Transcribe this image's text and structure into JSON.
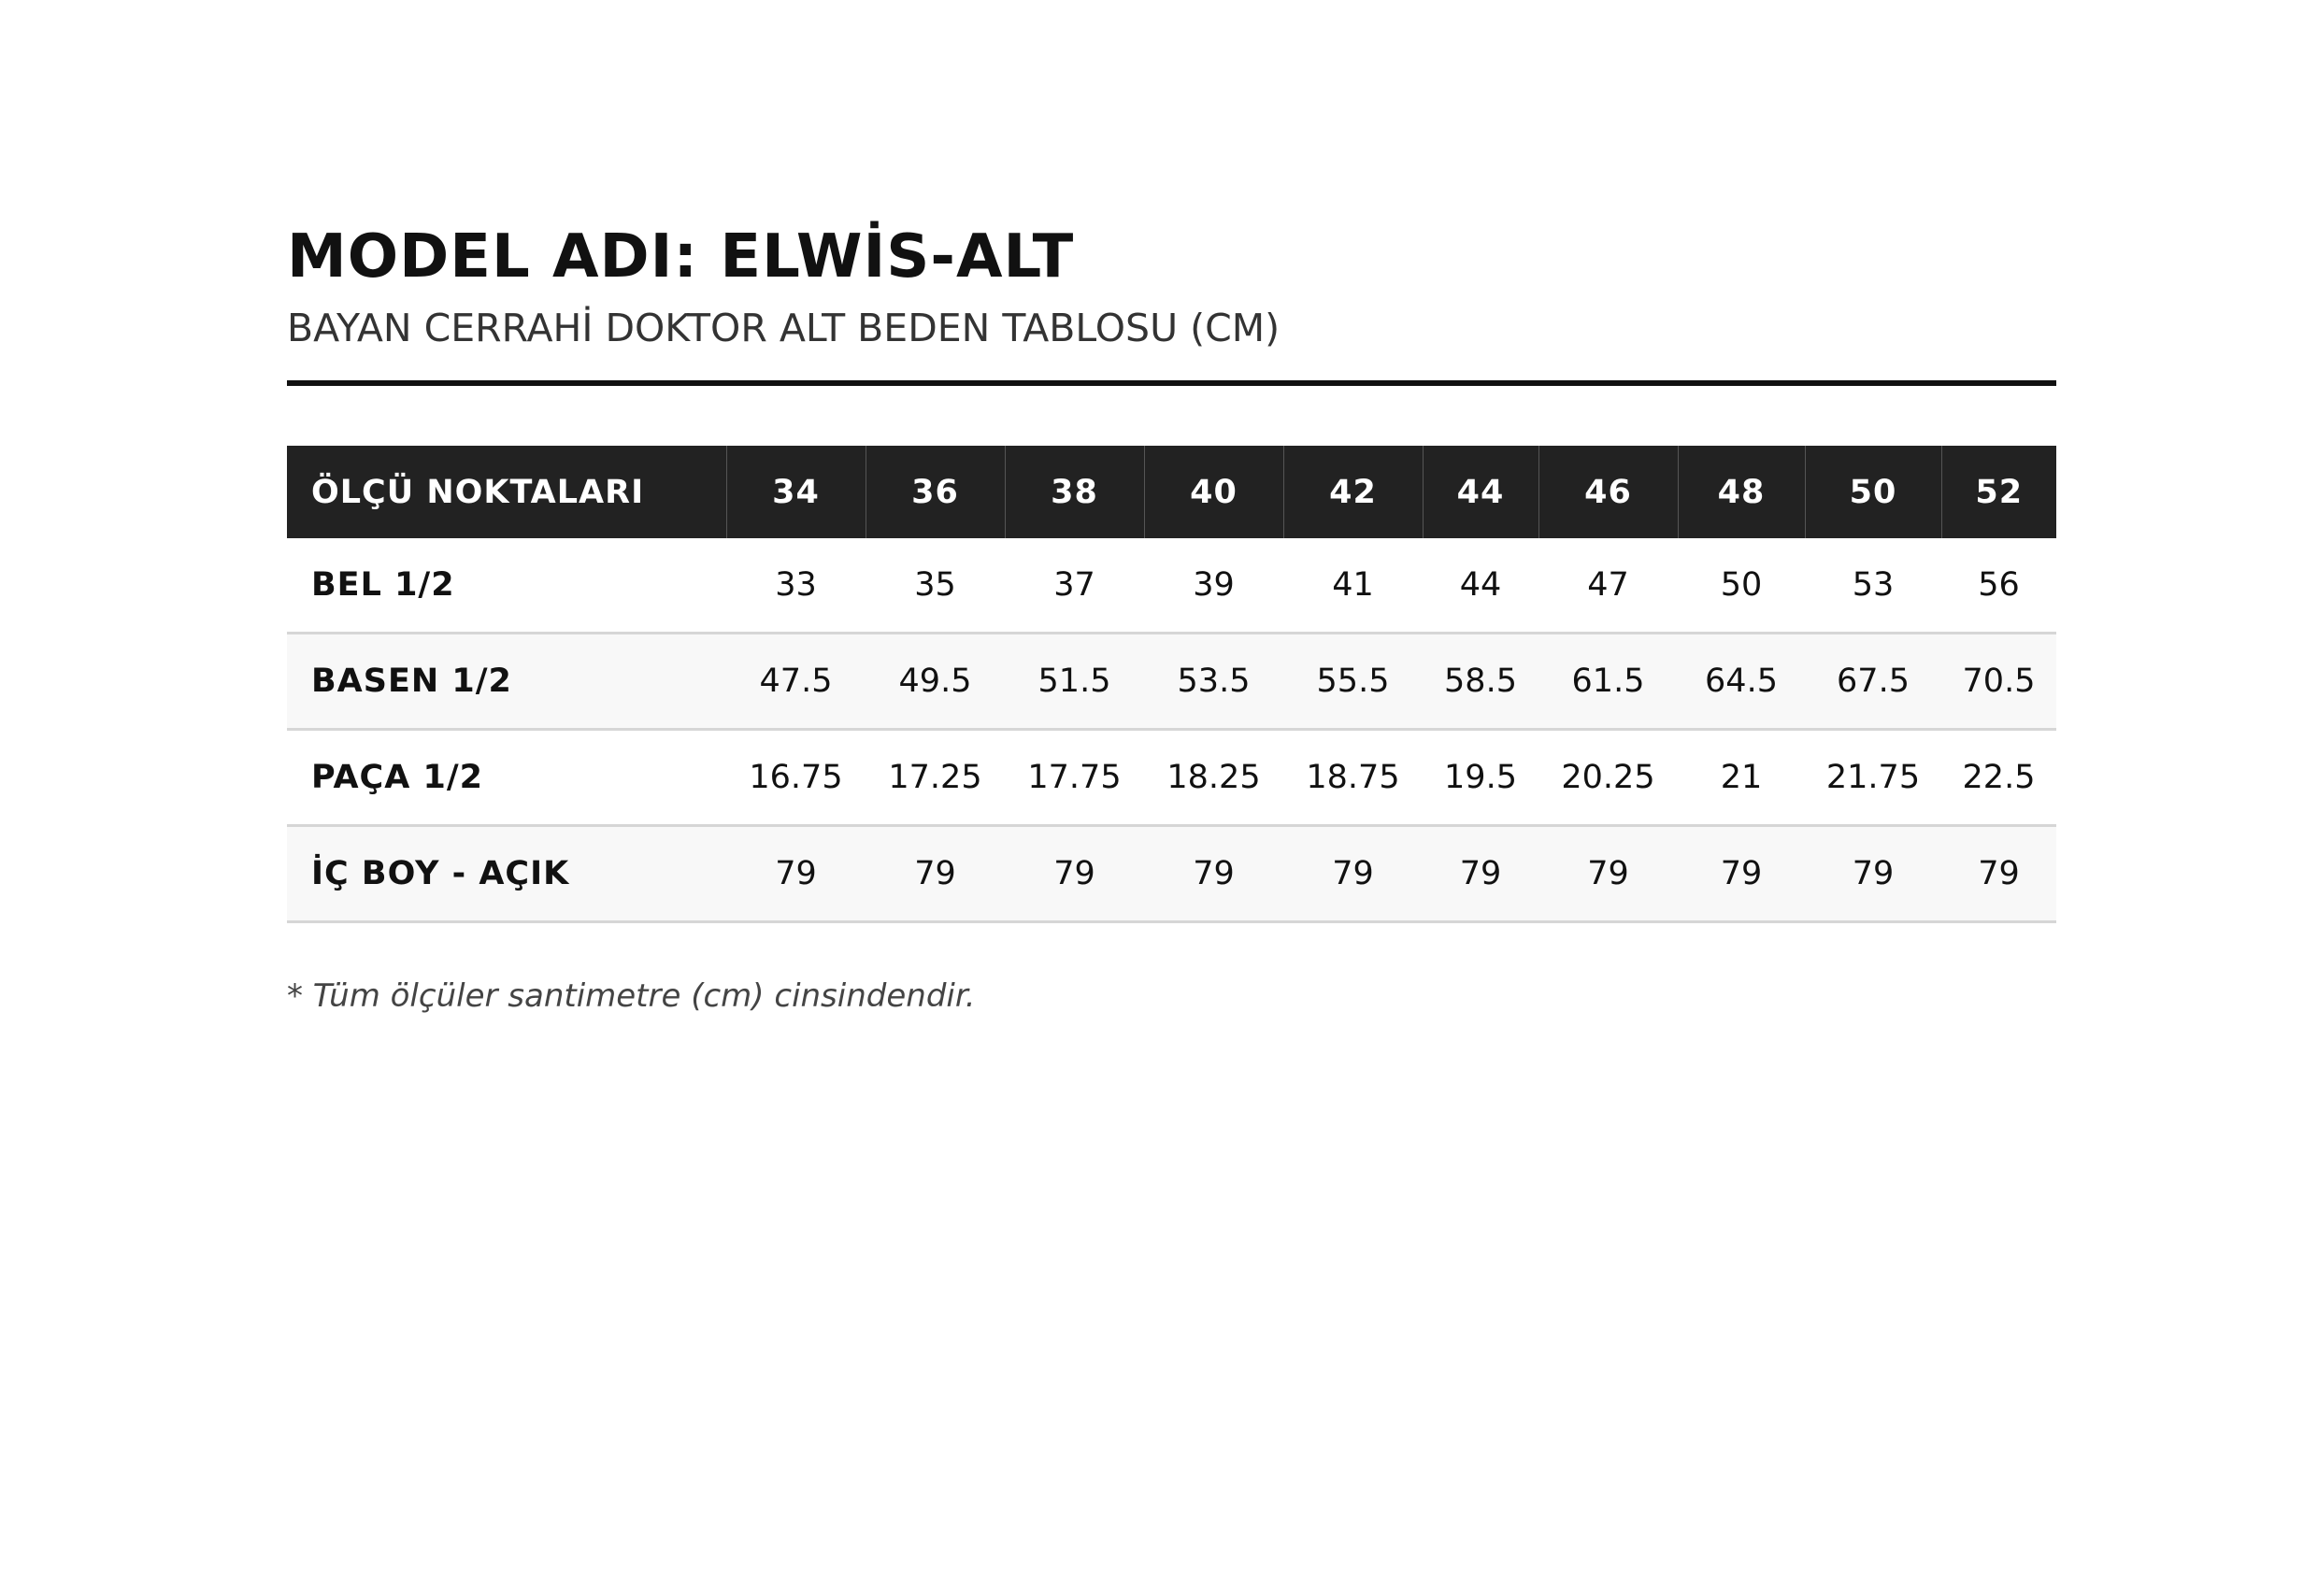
{
  "header": {
    "title": "MODEL ADI: ELWİS-ALT",
    "subtitle": "BAYAN CERRAHİ DOKTOR ALT BEDEN TABLOSU (CM)"
  },
  "table": {
    "columns": [
      "ÖLÇÜ NOKTALARI",
      "34",
      "36",
      "38",
      "40",
      "42",
      "44",
      "46",
      "48",
      "50",
      "52"
    ],
    "rows": [
      {
        "label": "BEL 1/2",
        "values": [
          33,
          35,
          37,
          39,
          41,
          44,
          47,
          50,
          53,
          56
        ]
      },
      {
        "label": "BASEN 1/2",
        "values": [
          47.5,
          49.5,
          51.5,
          53.5,
          55.5,
          58.5,
          61.5,
          64.5,
          67.5,
          70.5
        ]
      },
      {
        "label": "PAÇA 1/2",
        "values": [
          16.75,
          17.25,
          17.75,
          18.25,
          18.75,
          19.5,
          20.25,
          21,
          21.75,
          22.5
        ]
      },
      {
        "label": "İÇ BOY - AÇIK",
        "values": [
          79,
          79,
          79,
          79,
          79,
          79,
          79,
          79,
          79,
          79
        ]
      }
    ]
  },
  "footnote": "* Tüm ölçüler santimetre (cm) cinsindendir."
}
